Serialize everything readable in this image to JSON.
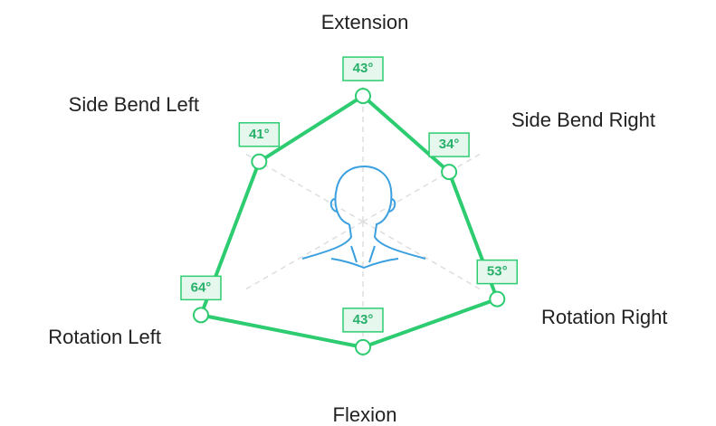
{
  "chart_data": {
    "type": "radar",
    "categories": [
      "Extension",
      "Side Bend Right",
      "Rotation Right",
      "Flexion",
      "Rotation Left",
      "Side Bend Left"
    ],
    "values": [
      43,
      34,
      53,
      43,
      64,
      41
    ],
    "value_labels": [
      "43°",
      "34°",
      "53°",
      "43°",
      "64°",
      "41°"
    ],
    "color": "#2ecc71"
  }
}
